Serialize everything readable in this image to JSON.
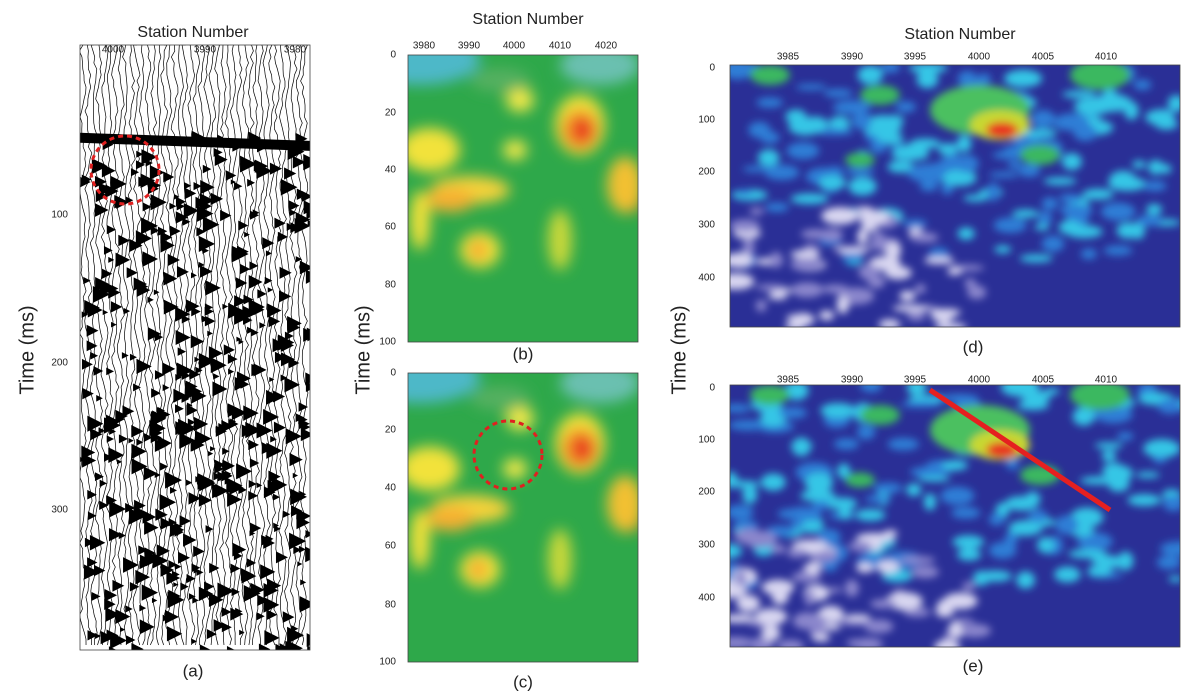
{
  "panels": [
    {
      "label": "(a)",
      "x_title": "Station Number",
      "xticks": [
        4000,
        3990,
        3980
      ],
      "yticks": [
        100,
        200,
        300
      ]
    },
    {
      "label": "(b)",
      "x_title": "Station Number",
      "xticks": [
        3980,
        3990,
        4000,
        4010,
        4020
      ],
      "yticks": [
        0,
        20,
        40,
        60,
        80,
        100
      ]
    },
    {
      "label": "(c)",
      "yticks": [
        0,
        20,
        40,
        60,
        80,
        100
      ]
    },
    {
      "label": "(d)",
      "x_title": "Station Number",
      "xticks": [
        3985,
        3990,
        3995,
        4000,
        4005,
        4010
      ],
      "yticks": [
        0,
        100,
        200,
        300,
        400
      ]
    },
    {
      "label": "(e)",
      "xticks": [
        3985,
        3990,
        3995,
        4000,
        4005,
        4010
      ],
      "yticks": [
        0,
        100,
        200,
        300,
        400
      ]
    }
  ],
  "y_titles": [
    "Time (ms)",
    "Time (ms)",
    "Time (ms)"
  ]
}
